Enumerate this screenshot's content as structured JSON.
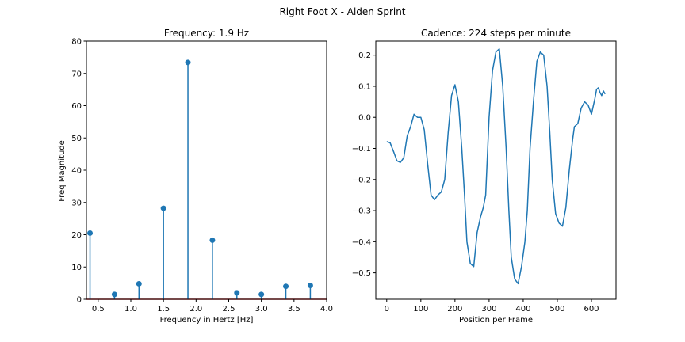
{
  "figure": {
    "suptitle": "Right Foot X - Alden Sprint"
  },
  "chart_data": [
    {
      "type": "stem",
      "title": "Frequency: 1.9 Hz",
      "xlabel": "Frequency in Hertz [Hz]",
      "ylabel": "Freq Magnitude",
      "xlim": [
        0.32,
        4.0
      ],
      "ylim": [
        0,
        80
      ],
      "xticks": [
        0.5,
        1.0,
        1.5,
        2.0,
        2.5,
        3.0,
        3.5,
        4.0
      ],
      "xtick_labels": [
        "0.5",
        "1.0",
        "1.5",
        "2.0",
        "2.5",
        "3.0",
        "3.5",
        "4.0"
      ],
      "yticks": [
        0,
        10,
        20,
        30,
        40,
        50,
        60,
        70,
        80
      ],
      "ytick_labels": [
        "0",
        "10",
        "20",
        "30",
        "40",
        "50",
        "60",
        "70",
        "80"
      ],
      "x": [
        0.375,
        0.75,
        1.125,
        1.5,
        1.875,
        2.25,
        2.625,
        3.0,
        3.375,
        3.75
      ],
      "y": [
        20.5,
        1.5,
        4.8,
        28.2,
        73.4,
        18.3,
        2.0,
        1.5,
        4.0,
        4.3
      ],
      "color": "#1f77b4",
      "baseline_color": "#d62728"
    },
    {
      "type": "line",
      "title": "Cadence: 224 steps per minute",
      "xlabel": "Position per Frame",
      "ylabel": "",
      "xlim": [
        -32,
        672
      ],
      "ylim": [
        -0.585,
        0.245
      ],
      "xticks": [
        0,
        100,
        200,
        300,
        400,
        500,
        600
      ],
      "xtick_labels": [
        "0",
        "100",
        "200",
        "300",
        "400",
        "500",
        "600"
      ],
      "yticks": [
        -0.5,
        -0.4,
        -0.3,
        -0.2,
        -0.1,
        0.0,
        0.1,
        0.2
      ],
      "ytick_labels": [
        "−0.5",
        "−0.4",
        "−0.3",
        "−0.2",
        "−0.1",
        "0.0",
        "0.1",
        "0.2"
      ],
      "color": "#1f77b4",
      "x": [
        0,
        10,
        20,
        30,
        40,
        50,
        60,
        70,
        80,
        85,
        90,
        100,
        110,
        120,
        130,
        140,
        150,
        160,
        170,
        180,
        190,
        200,
        210,
        220,
        228,
        235,
        245,
        255,
        265,
        275,
        283,
        290,
        300,
        310,
        320,
        330,
        340,
        350,
        358,
        365,
        375,
        385,
        395,
        405,
        412,
        420,
        430,
        440,
        450,
        460,
        470,
        478,
        485,
        495,
        505,
        515,
        525,
        535,
        545,
        550,
        560,
        570,
        580,
        590,
        600,
        610,
        615,
        620,
        625,
        630,
        635,
        640
      ],
      "y": [
        -0.078,
        -0.082,
        -0.11,
        -0.14,
        -0.145,
        -0.13,
        -0.06,
        -0.03,
        0.01,
        0.005,
        0.0,
        0.0,
        -0.04,
        -0.15,
        -0.25,
        -0.265,
        -0.25,
        -0.24,
        -0.2,
        -0.05,
        0.07,
        0.105,
        0.05,
        -0.1,
        -0.25,
        -0.4,
        -0.47,
        -0.48,
        -0.37,
        -0.32,
        -0.29,
        -0.25,
        0.0,
        0.15,
        0.21,
        0.22,
        0.1,
        -0.1,
        -0.3,
        -0.45,
        -0.52,
        -0.535,
        -0.48,
        -0.4,
        -0.3,
        -0.1,
        0.05,
        0.18,
        0.21,
        0.2,
        0.1,
        -0.05,
        -0.2,
        -0.31,
        -0.34,
        -0.35,
        -0.29,
        -0.17,
        -0.07,
        -0.03,
        -0.02,
        0.03,
        0.05,
        0.04,
        0.01,
        0.06,
        0.09,
        0.095,
        0.08,
        0.07,
        0.085,
        0.075
      ]
    }
  ]
}
